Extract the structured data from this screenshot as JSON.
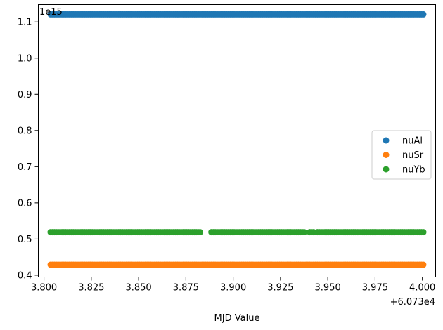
{
  "chart_data": {
    "type": "scatter",
    "title": "",
    "xlabel": "MJD Value",
    "ylabel": "",
    "x_offset_label": "+6.073e4",
    "y_scale_label": "1e15",
    "xlim": [
      3.797,
      4.007
    ],
    "ylim": [
      0.395,
      1.148
    ],
    "x_ticks": [
      3.8,
      3.825,
      3.85,
      3.875,
      3.9,
      3.925,
      3.95,
      3.975,
      4.0
    ],
    "x_tick_labels": [
      "3.800",
      "3.825",
      "3.850",
      "3.875",
      "3.900",
      "3.925",
      "3.950",
      "3.975",
      "4.000"
    ],
    "y_ticks": [
      0.4,
      0.5,
      0.6,
      0.7,
      0.8,
      0.9,
      1.0,
      1.1
    ],
    "y_tick_labels": [
      "0.4",
      "0.5",
      "0.6",
      "0.7",
      "0.8",
      "0.9",
      "1.0",
      "1.1"
    ],
    "grid": false,
    "legend_position": "center-right",
    "series": [
      {
        "name": "nuAl",
        "color": "#1f77b4",
        "y": 1.121,
        "x_ranges": [
          [
            3.8035,
            3.8935
          ],
          [
            3.8945,
            4.0005
          ]
        ]
      },
      {
        "name": "nuSr",
        "color": "#ff7f0e",
        "y": 0.429,
        "x_ranges": [
          [
            3.8035,
            4.0005
          ]
        ]
      },
      {
        "name": "nuYb",
        "color": "#2ca02c",
        "y": 0.519,
        "x_ranges": [
          [
            3.8035,
            3.8825
          ],
          [
            3.8885,
            3.9375
          ],
          [
            3.9405,
            3.9425
          ],
          [
            3.9445,
            4.0005
          ]
        ]
      }
    ]
  }
}
